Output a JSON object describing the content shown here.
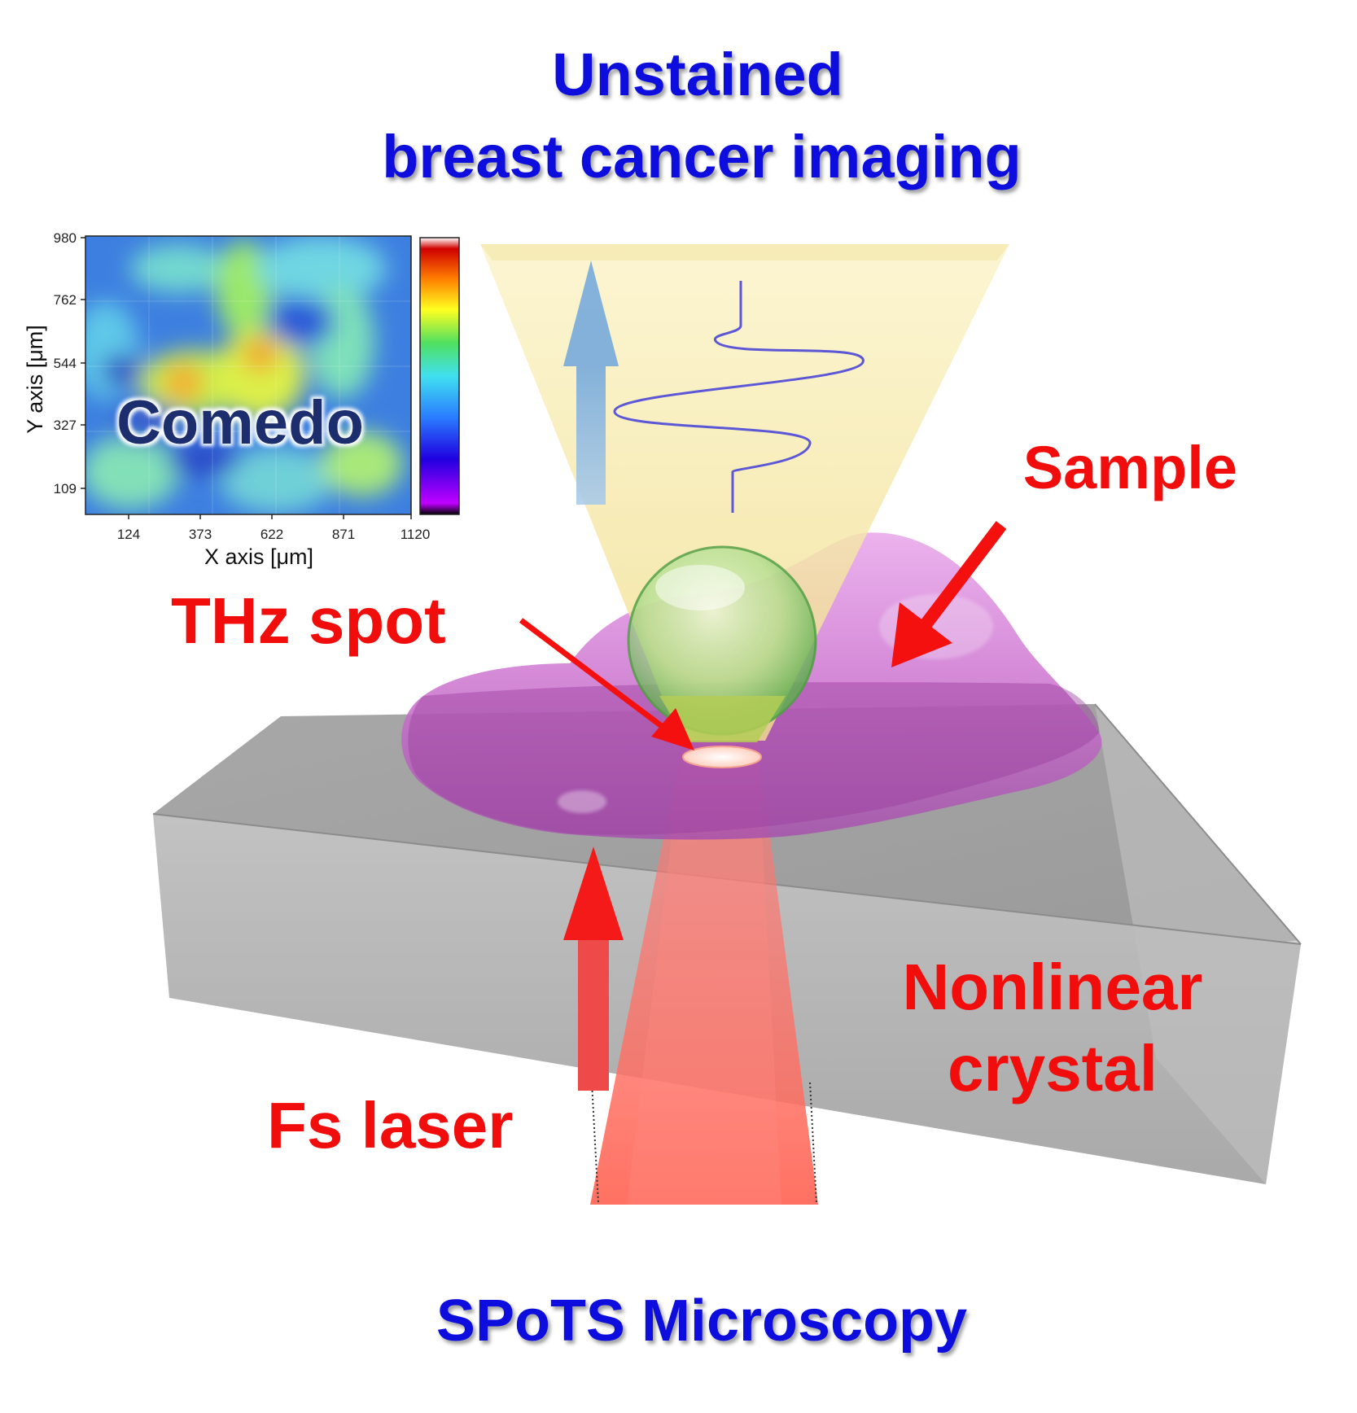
{
  "title": {
    "line1": "Unstained",
    "line2": "breast cancer imaging"
  },
  "footer": "SPoTS Microscopy",
  "labels": {
    "sample": "Sample",
    "thz_spot": "THz spot",
    "nonlinear_line1": "Nonlinear",
    "nonlinear_line2": "crystal",
    "fs_laser": "Fs laser"
  },
  "inset": {
    "overlay_label": "Comedo",
    "xlabel": "X axis [μm]",
    "ylabel": "Y axis [μm]",
    "x_ticks": [
      "124",
      "373",
      "622",
      "871",
      "1120"
    ],
    "y_ticks": [
      "980",
      "762",
      "544",
      "327",
      "109"
    ],
    "colormap": "rainbow (black-purple-blue-cyan-green-yellow-orange-red-white)"
  },
  "colors": {
    "title_blue": "#0a10dd",
    "label_red": "#f20d0d",
    "sample_magenta": "#c860c8",
    "crystal_gray": "#b4b4b4",
    "laser_red": "#ff5a50",
    "thz_cone_yellow": "#f6eaa8",
    "arrow_blue": "#7aaee0"
  }
}
